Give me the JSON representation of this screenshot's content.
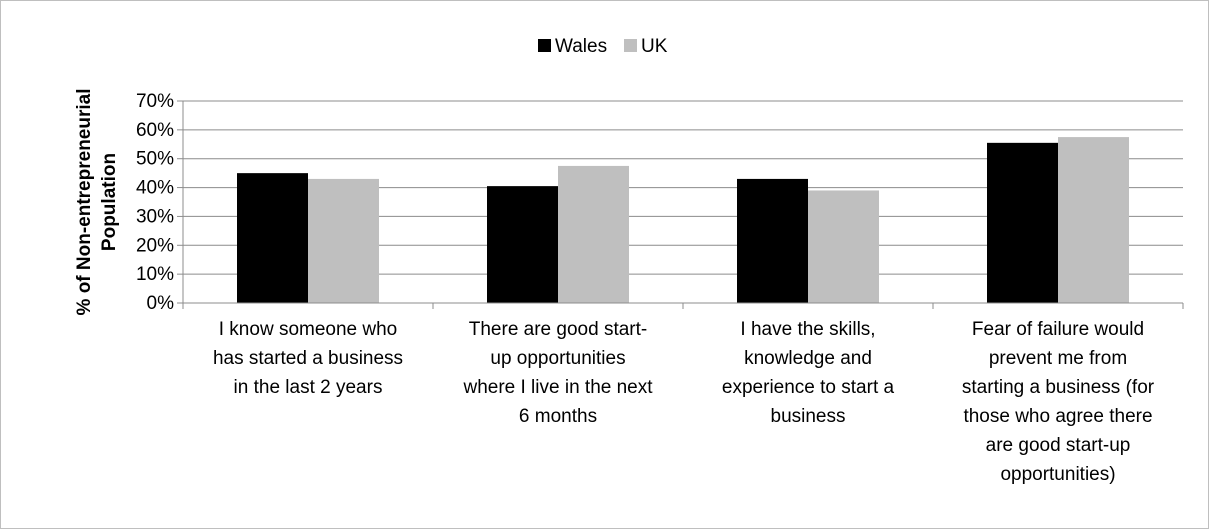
{
  "chart_data": {
    "type": "bar",
    "title": "",
    "xlabel": "",
    "ylabel_lines": [
      "% of Non-entrepreneurial",
      "Population"
    ],
    "ylim": [
      0,
      70
    ],
    "yticks": [
      "0%",
      "10%",
      "20%",
      "30%",
      "40%",
      "50%",
      "60%",
      "70%"
    ],
    "ytick_values": [
      0,
      10,
      20,
      30,
      40,
      50,
      60,
      70
    ],
    "grid": true,
    "legend_position": "top-center",
    "categories": [
      [
        "I know someone who",
        "has started a business",
        "in the last 2 years"
      ],
      [
        "There are good start-",
        "up opportunities",
        "where I live in the next",
        "6 months"
      ],
      [
        "I have the skills,",
        "knowledge and",
        "experience to start a",
        "business"
      ],
      [
        "Fear of failure would",
        "prevent me from",
        "starting a business (for",
        "those who agree there",
        "are good start-up",
        "opportunities)"
      ]
    ],
    "series": [
      {
        "name": "Wales",
        "color": "#000000",
        "values": [
          45,
          40.5,
          43,
          55.5
        ]
      },
      {
        "name": "UK",
        "color": "#bfbfbf",
        "values": [
          43,
          47.5,
          39,
          57.5
        ]
      }
    ]
  }
}
